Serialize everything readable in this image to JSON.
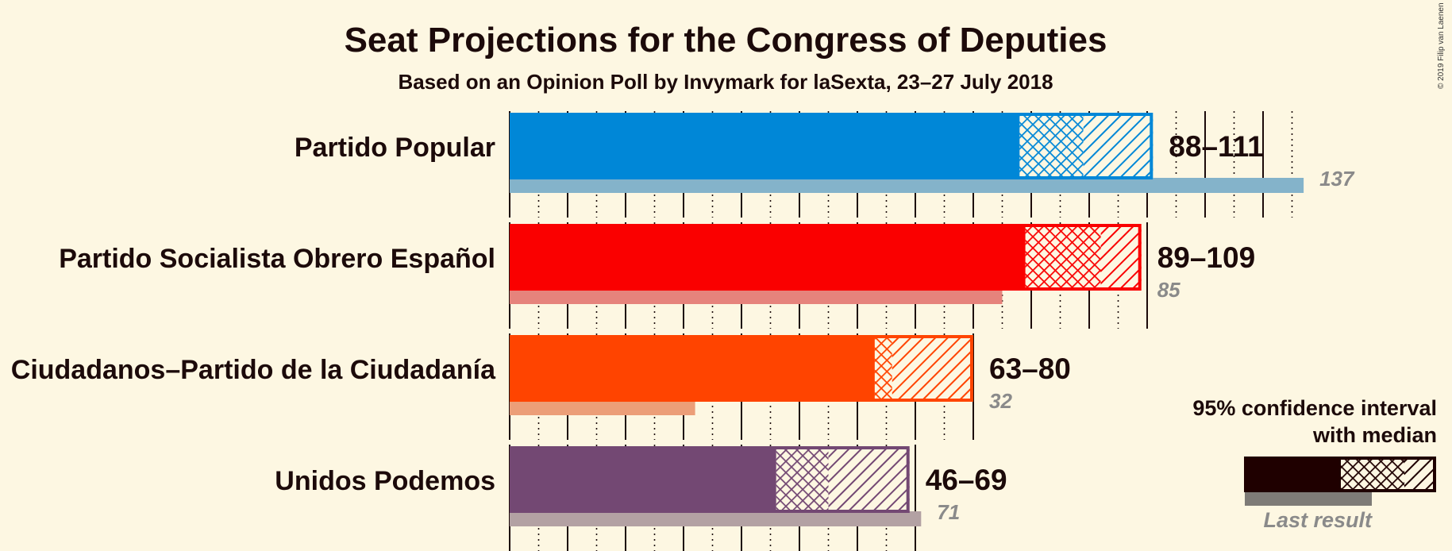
{
  "chart_data": {
    "type": "bar",
    "title": "Seat Projections for the Congress of Deputies",
    "subtitle": "Based on an Opinion Poll by Invymark for laSexta, 23–27 July 2018",
    "copyright": "© 2019 Filip van Laenen",
    "x_range": [
      0,
      137
    ],
    "gridline_step": 10,
    "parties": [
      {
        "name": "Partido Popular",
        "low": 88,
        "median": 99,
        "high": 111,
        "range_label": "88–111",
        "last_result": 137,
        "last_label": "137",
        "color": "#0087d7",
        "last_color": "#84b3ca"
      },
      {
        "name": "Partido Socialista Obrero Español",
        "low": 89,
        "median": 102,
        "high": 109,
        "range_label": "89–109",
        "last_result": 85,
        "last_label": "85",
        "color": "#fa0000",
        "last_color": "#e6837c"
      },
      {
        "name": "Ciudadanos–Partido de la Ciudadanía",
        "low": 63,
        "median": 66,
        "high": 80,
        "range_label": "63–80",
        "last_result": 32,
        "last_label": "32",
        "color": "#ff4400",
        "last_color": "#ec9e78"
      },
      {
        "name": "Unidos Podemos",
        "low": 46,
        "median": 55,
        "high": 69,
        "range_label": "46–69",
        "last_result": 71,
        "last_label": "71",
        "color": "#734873",
        "last_color": "#b3a1a3"
      }
    ],
    "legend": {
      "line1": "95% confidence interval",
      "line2": "with median",
      "last_result": "Last result",
      "color": "#1f0000"
    }
  }
}
